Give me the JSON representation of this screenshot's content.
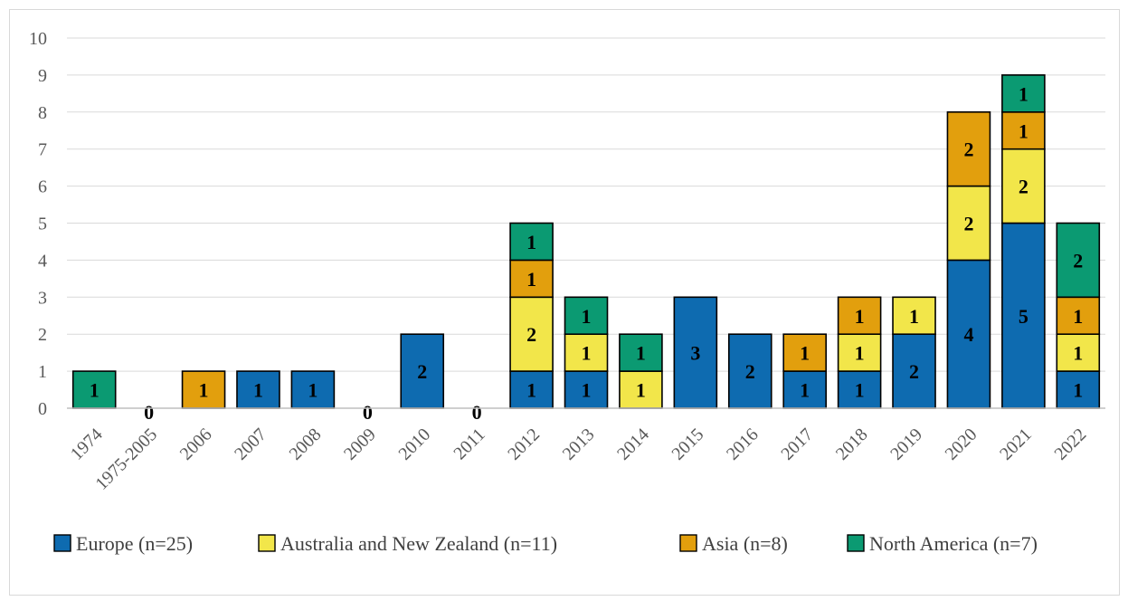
{
  "chart_data": {
    "type": "bar",
    "stacked": true,
    "categories": [
      "1974",
      "1975-2005",
      "2006",
      "2007",
      "2008",
      "2009",
      "2010",
      "2011",
      "2012",
      "2013",
      "2014",
      "2015",
      "2016",
      "2017",
      "2018",
      "2019",
      "2020",
      "2021",
      "2022"
    ],
    "series": [
      {
        "name": "Europe (n=25)",
        "color": "#0e6bb0",
        "values": [
          0,
          0,
          0,
          1,
          1,
          0,
          2,
          0,
          1,
          1,
          0,
          3,
          2,
          1,
          1,
          2,
          4,
          5,
          1
        ]
      },
      {
        "name": "Australia and New Zealand (n=11)",
        "color": "#f2e64a",
        "values": [
          0,
          0,
          0,
          0,
          0,
          0,
          0,
          0,
          2,
          1,
          1,
          0,
          0,
          0,
          1,
          1,
          2,
          2,
          1
        ]
      },
      {
        "name": "Asia (n=8)",
        "color": "#e29f0d",
        "values": [
          0,
          0,
          1,
          0,
          0,
          0,
          0,
          0,
          1,
          0,
          0,
          0,
          0,
          1,
          1,
          0,
          2,
          1,
          1
        ]
      },
      {
        "name": "North America (n=7)",
        "color": "#0b9a72",
        "values": [
          1,
          0,
          0,
          0,
          0,
          0,
          0,
          0,
          1,
          1,
          1,
          0,
          0,
          0,
          0,
          0,
          0,
          1,
          2
        ]
      }
    ],
    "zero_labels": [
      "0",
      "0",
      "0"
    ],
    "yticks": [
      "0",
      "1",
      "2",
      "3",
      "4",
      "5",
      "6",
      "7",
      "8",
      "9",
      "10"
    ],
    "ylim": [
      0,
      10
    ],
    "grid": true,
    "legend_position": "bottom"
  }
}
